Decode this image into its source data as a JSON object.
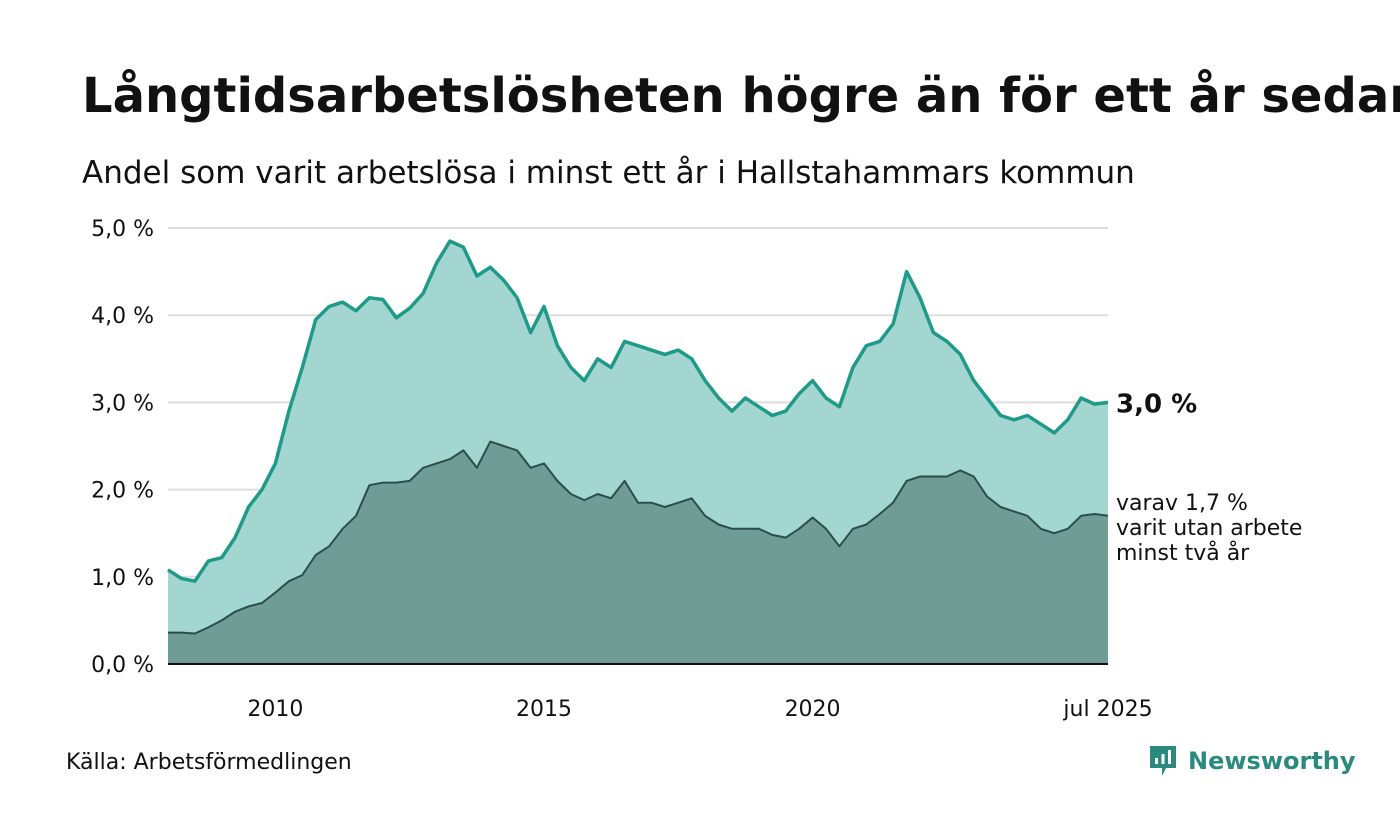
{
  "title": "Långtidsarbetslösheten högre än för ett år sedan",
  "subtitle": "Andel som varit arbetslösa i minst ett år i Hallstahammars kommun",
  "source": "Källa: Arbetsförmedlingen",
  "brand": "Newsworthy",
  "colors": {
    "upper_fill": "#a3d6d0",
    "upper_line": "#1f9a88",
    "lower_fill": "#6f9c95",
    "lower_line": "#2b4e49",
    "grid": "#dddddd",
    "axis": "#111111",
    "brand": "#2a8a7e"
  },
  "chart_data": {
    "type": "area",
    "ylim": [
      0,
      5
    ],
    "yticks": [
      0,
      1,
      2,
      3,
      4,
      5
    ],
    "ytick_labels": [
      "0,0 %",
      "1,0 %",
      "2,0 %",
      "3,0 %",
      "4,0 %",
      "5,0 %"
    ],
    "xlim": [
      2008.0,
      2025.5
    ],
    "xticks": [
      2010,
      2015,
      2020,
      2025.5
    ],
    "xtick_labels": [
      "2010",
      "2015",
      "2020",
      "jul 2025"
    ],
    "grid": true,
    "end_label_main": "3,0 %",
    "end_label_sub": [
      "varav 1,7 %",
      "varit utan arbete",
      "minst två år"
    ],
    "series": [
      {
        "key": "minst ett år",
        "points": [
          [
            2008.0,
            1.08
          ],
          [
            2008.25,
            0.98
          ],
          [
            2008.5,
            0.95
          ],
          [
            2008.75,
            1.18
          ],
          [
            2009.0,
            1.22
          ],
          [
            2009.25,
            1.45
          ],
          [
            2009.5,
            1.8
          ],
          [
            2009.75,
            2.0
          ],
          [
            2010.0,
            2.3
          ],
          [
            2010.25,
            2.9
          ],
          [
            2010.5,
            3.4
          ],
          [
            2010.75,
            3.95
          ],
          [
            2011.0,
            4.1
          ],
          [
            2011.25,
            4.15
          ],
          [
            2011.5,
            4.05
          ],
          [
            2011.75,
            4.2
          ],
          [
            2012.0,
            4.18
          ],
          [
            2012.25,
            3.97
          ],
          [
            2012.5,
            4.08
          ],
          [
            2012.75,
            4.25
          ],
          [
            2013.0,
            4.6
          ],
          [
            2013.25,
            4.85
          ],
          [
            2013.5,
            4.78
          ],
          [
            2013.75,
            4.45
          ],
          [
            2014.0,
            4.55
          ],
          [
            2014.25,
            4.4
          ],
          [
            2014.5,
            4.2
          ],
          [
            2014.75,
            3.8
          ],
          [
            2015.0,
            4.1
          ],
          [
            2015.25,
            3.65
          ],
          [
            2015.5,
            3.4
          ],
          [
            2015.75,
            3.25
          ],
          [
            2016.0,
            3.5
          ],
          [
            2016.25,
            3.4
          ],
          [
            2016.5,
            3.7
          ],
          [
            2016.75,
            3.65
          ],
          [
            2017.0,
            3.6
          ],
          [
            2017.25,
            3.55
          ],
          [
            2017.5,
            3.6
          ],
          [
            2017.75,
            3.5
          ],
          [
            2018.0,
            3.25
          ],
          [
            2018.25,
            3.05
          ],
          [
            2018.5,
            2.9
          ],
          [
            2018.75,
            3.05
          ],
          [
            2019.0,
            2.95
          ],
          [
            2019.25,
            2.85
          ],
          [
            2019.5,
            2.9
          ],
          [
            2019.75,
            3.1
          ],
          [
            2020.0,
            3.25
          ],
          [
            2020.25,
            3.05
          ],
          [
            2020.5,
            2.95
          ],
          [
            2020.75,
            3.4
          ],
          [
            2021.0,
            3.65
          ],
          [
            2021.25,
            3.7
          ],
          [
            2021.5,
            3.9
          ],
          [
            2021.75,
            4.5
          ],
          [
            2022.0,
            4.2
          ],
          [
            2022.25,
            3.8
          ],
          [
            2022.5,
            3.7
          ],
          [
            2022.75,
            3.55
          ],
          [
            2023.0,
            3.25
          ],
          [
            2023.25,
            3.05
          ],
          [
            2023.5,
            2.85
          ],
          [
            2023.75,
            2.8
          ],
          [
            2024.0,
            2.85
          ],
          [
            2024.25,
            2.75
          ],
          [
            2024.5,
            2.65
          ],
          [
            2024.75,
            2.8
          ],
          [
            2025.0,
            3.05
          ],
          [
            2025.25,
            2.98
          ],
          [
            2025.5,
            3.0
          ]
        ]
      },
      {
        "key": "varav minst två år",
        "points": [
          [
            2008.0,
            0.36
          ],
          [
            2008.25,
            0.36
          ],
          [
            2008.5,
            0.35
          ],
          [
            2008.75,
            0.42
          ],
          [
            2009.0,
            0.5
          ],
          [
            2009.25,
            0.6
          ],
          [
            2009.5,
            0.66
          ],
          [
            2009.75,
            0.7
          ],
          [
            2010.0,
            0.82
          ],
          [
            2010.25,
            0.95
          ],
          [
            2010.5,
            1.02
          ],
          [
            2010.75,
            1.25
          ],
          [
            2011.0,
            1.35
          ],
          [
            2011.25,
            1.55
          ],
          [
            2011.5,
            1.7
          ],
          [
            2011.75,
            2.05
          ],
          [
            2012.0,
            2.08
          ],
          [
            2012.25,
            2.08
          ],
          [
            2012.5,
            2.1
          ],
          [
            2012.75,
            2.25
          ],
          [
            2013.0,
            2.3
          ],
          [
            2013.25,
            2.35
          ],
          [
            2013.5,
            2.45
          ],
          [
            2013.75,
            2.25
          ],
          [
            2014.0,
            2.55
          ],
          [
            2014.25,
            2.5
          ],
          [
            2014.5,
            2.45
          ],
          [
            2014.75,
            2.25
          ],
          [
            2015.0,
            2.3
          ],
          [
            2015.25,
            2.1
          ],
          [
            2015.5,
            1.95
          ],
          [
            2015.75,
            1.88
          ],
          [
            2016.0,
            1.95
          ],
          [
            2016.25,
            1.9
          ],
          [
            2016.5,
            2.1
          ],
          [
            2016.75,
            1.85
          ],
          [
            2017.0,
            1.85
          ],
          [
            2017.25,
            1.8
          ],
          [
            2017.5,
            1.85
          ],
          [
            2017.75,
            1.9
          ],
          [
            2018.0,
            1.7
          ],
          [
            2018.25,
            1.6
          ],
          [
            2018.5,
            1.55
          ],
          [
            2018.75,
            1.55
          ],
          [
            2019.0,
            1.55
          ],
          [
            2019.25,
            1.48
          ],
          [
            2019.5,
            1.45
          ],
          [
            2019.75,
            1.55
          ],
          [
            2020.0,
            1.68
          ],
          [
            2020.25,
            1.55
          ],
          [
            2020.5,
            1.35
          ],
          [
            2020.75,
            1.55
          ],
          [
            2021.0,
            1.6
          ],
          [
            2021.25,
            1.72
          ],
          [
            2021.5,
            1.85
          ],
          [
            2021.75,
            2.1
          ],
          [
            2022.0,
            2.15
          ],
          [
            2022.25,
            2.15
          ],
          [
            2022.5,
            2.15
          ],
          [
            2022.75,
            2.22
          ],
          [
            2023.0,
            2.15
          ],
          [
            2023.25,
            1.92
          ],
          [
            2023.5,
            1.8
          ],
          [
            2023.75,
            1.75
          ],
          [
            2024.0,
            1.7
          ],
          [
            2024.25,
            1.55
          ],
          [
            2024.5,
            1.5
          ],
          [
            2024.75,
            1.55
          ],
          [
            2025.0,
            1.7
          ],
          [
            2025.25,
            1.72
          ],
          [
            2025.5,
            1.7
          ]
        ]
      }
    ]
  }
}
